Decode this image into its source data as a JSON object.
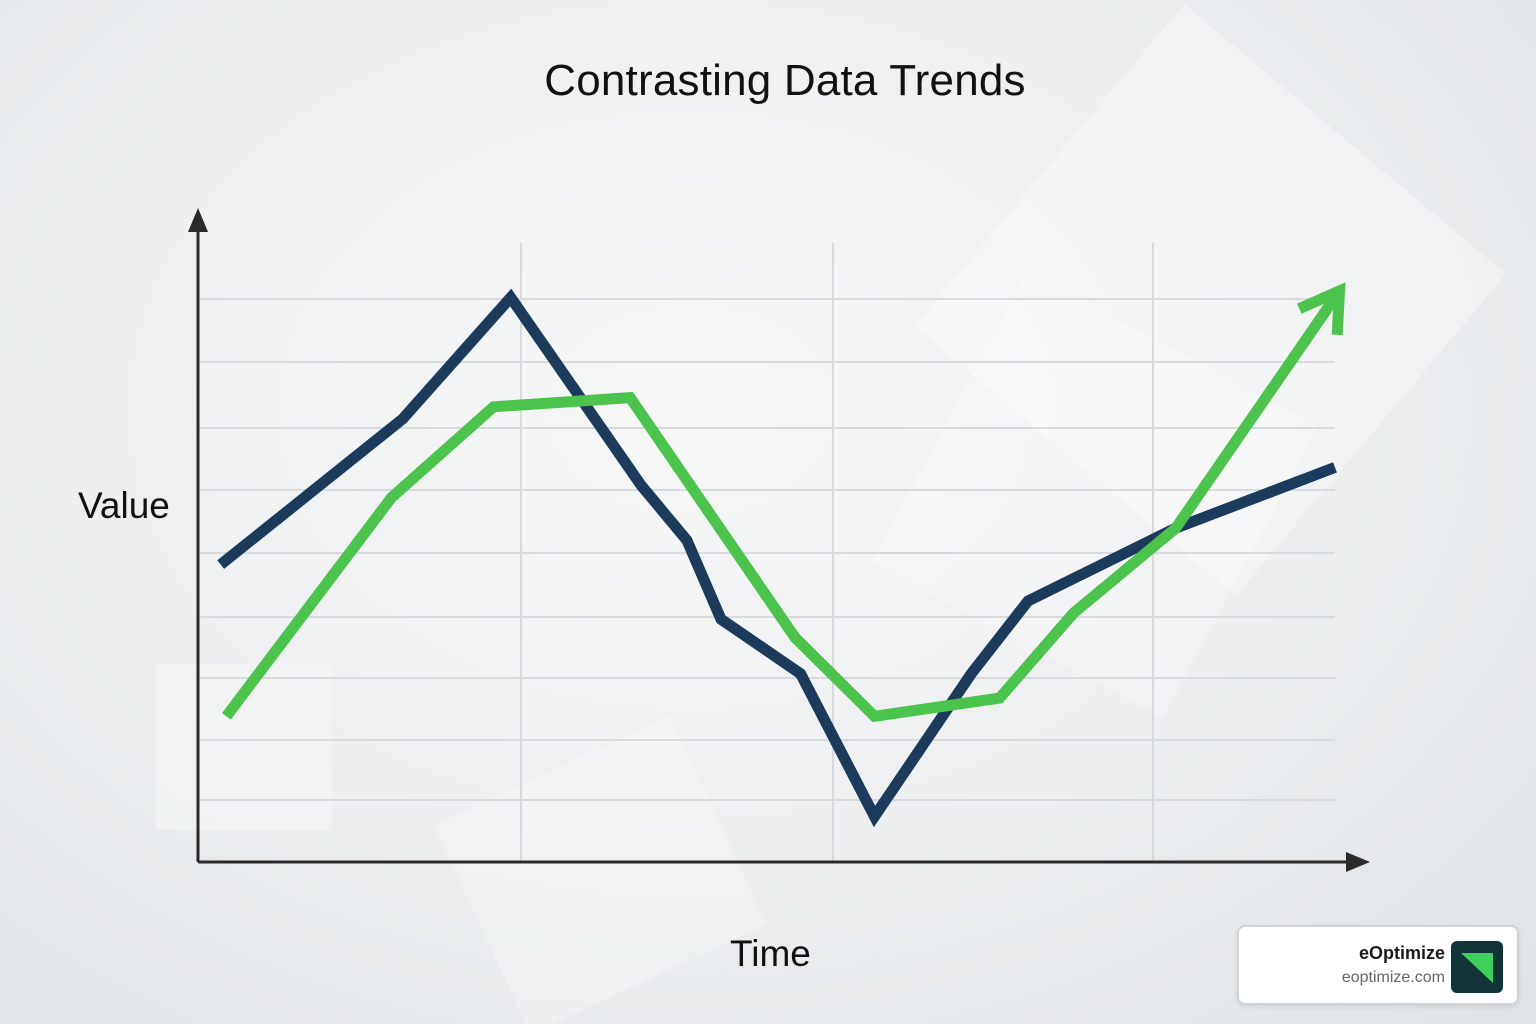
{
  "chart_data": {
    "type": "line",
    "title": "Contrasting Data Trends",
    "xlabel": "Time",
    "ylabel": "Value",
    "xlim": [
      0,
      10
    ],
    "ylim": [
      0,
      10
    ],
    "grid": true,
    "series": [
      {
        "color": "#1c3a5c",
        "x": [
          0.2,
          1.8,
          2.75,
          3.9,
          4.3,
          4.6,
          5.3,
          5.95,
          6.8,
          7.3,
          8.6,
          10
        ],
        "y": [
          4.9,
          7.3,
          9.3,
          6.2,
          5.3,
          4.0,
          3.1,
          0.75,
          3.1,
          4.3,
          5.5,
          6.5
        ]
      },
      {
        "color": "#4cc34c",
        "x": [
          0.25,
          1.7,
          2.6,
          3.8,
          5.25,
          5.95,
          7.05,
          7.7,
          8.6,
          10
        ],
        "y": [
          2.4,
          6.0,
          7.5,
          7.65,
          3.7,
          2.4,
          2.7,
          4.1,
          5.5,
          9.3
        ]
      }
    ],
    "arrow_on_last_point": "green series"
  },
  "colors": {
    "navy_series": "#1c3a5c",
    "green_series": "#4cc34c",
    "axis": "#2a2a2a",
    "grid": "#d6dadd"
  },
  "brand": {
    "name": "eOptimize",
    "url": "eoptimize.com",
    "logo_icon": "eoptimize-logo-icon"
  }
}
